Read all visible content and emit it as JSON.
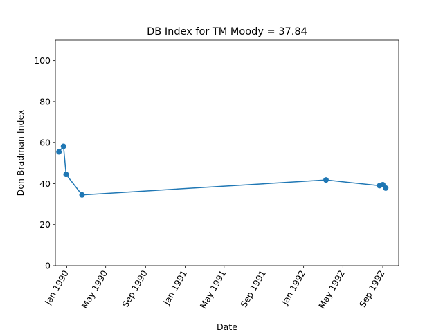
{
  "chart_data": {
    "type": "line",
    "title": "DB Index for TM Moody = 37.84",
    "xlabel": "Date",
    "ylabel": "Don Bradman Index",
    "ylim": [
      0,
      110
    ],
    "yticks": [
      0,
      20,
      40,
      60,
      80,
      100
    ],
    "xlim": [
      "1989-11-27",
      "1992-10-20"
    ],
    "xticks": [
      {
        "date": "1990-01-01",
        "label": "Jan 1990"
      },
      {
        "date": "1990-05-01",
        "label": "May 1990"
      },
      {
        "date": "1990-09-01",
        "label": "Sep 1990"
      },
      {
        "date": "1991-01-01",
        "label": "Jan 1991"
      },
      {
        "date": "1991-05-01",
        "label": "May 1991"
      },
      {
        "date": "1991-09-01",
        "label": "Sep 1991"
      },
      {
        "date": "1992-01-01",
        "label": "Jan 1992"
      },
      {
        "date": "1992-05-01",
        "label": "May 1992"
      },
      {
        "date": "1992-09-01",
        "label": "Sep 1992"
      }
    ],
    "grid": false,
    "series": [
      {
        "color": "#1f77b4",
        "points": [
          {
            "x": "1989-12-08",
            "y": 55.5
          },
          {
            "x": "1989-12-22",
            "y": 58.2
          },
          {
            "x": "1989-12-30",
            "y": 44.5
          },
          {
            "x": "1990-02-17",
            "y": 34.5
          },
          {
            "x": "1992-03-10",
            "y": 41.8
          },
          {
            "x": "1992-08-22",
            "y": 39.0
          },
          {
            "x": "1992-09-01",
            "y": 39.5
          },
          {
            "x": "1992-09-10",
            "y": 37.84
          }
        ]
      }
    ]
  }
}
